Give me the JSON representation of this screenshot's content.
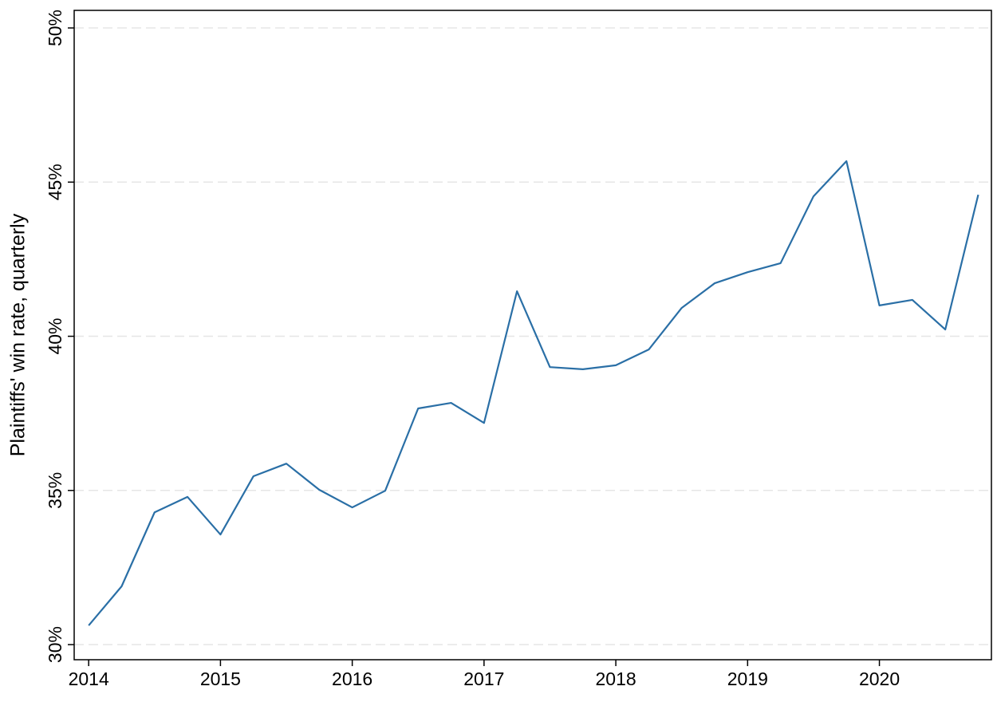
{
  "chart_data": {
    "type": "line",
    "y_label": "Plaintiffs' win rate, quarterly",
    "x": [
      2014,
      2014.25,
      2014.5,
      2014.75,
      2015,
      2015.25,
      2015.5,
      2015.75,
      2016,
      2016.25,
      2016.5,
      2016.75,
      2017,
      2017.25,
      2017.5,
      2017.75,
      2018,
      2018.25,
      2018.5,
      2018.75,
      2019,
      2019.25,
      2019.5,
      2019.75,
      2020,
      2020.25,
      2020.5,
      2020.75
    ],
    "series": [
      {
        "color": "#2a6fa6",
        "values": [
          30.62,
          31.89,
          34.29,
          34.79,
          33.57,
          35.46,
          35.87,
          35.02,
          34.45,
          34.99,
          37.66,
          37.84,
          37.19,
          41.46,
          39.0,
          38.93,
          39.06,
          39.57,
          40.92,
          41.72,
          42.08,
          42.37,
          44.54,
          45.68,
          41.0,
          41.18,
          40.22,
          44.59
        ]
      }
    ],
    "xlim": [
      2013.89,
      2020.85
    ],
    "xticks": [
      2014,
      2015,
      2016,
      2017,
      2018,
      2019,
      2020
    ],
    "ylim": [
      29.51,
      50.57
    ],
    "yticks": [
      {
        "value": 30,
        "label": "30%"
      },
      {
        "value": 35,
        "label": "35%"
      },
      {
        "value": 40,
        "label": "40%"
      },
      {
        "value": 45,
        "label": "45%"
      },
      {
        "value": 50,
        "label": "50%"
      }
    ],
    "grid": true
  }
}
